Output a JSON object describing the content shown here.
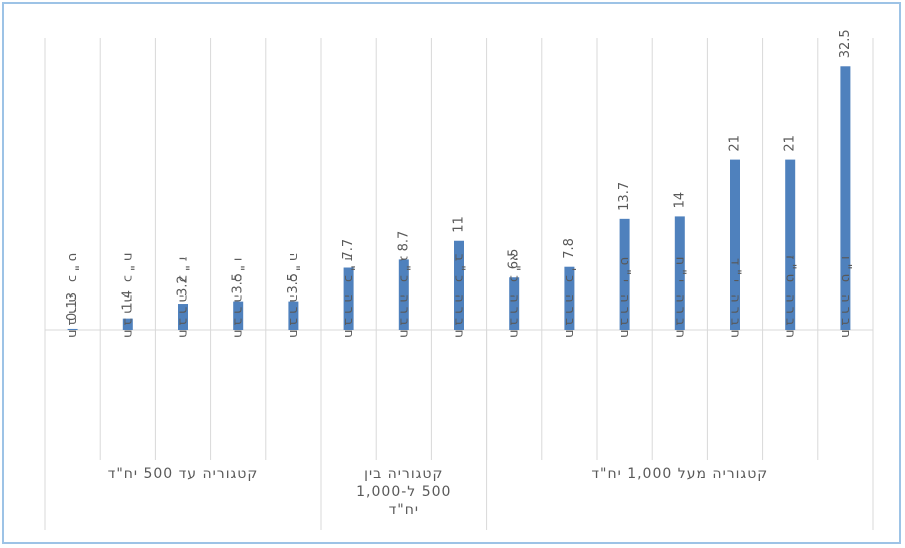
{
  "chart_data": {
    "type": "bar",
    "title": "",
    "xlabel": "",
    "ylabel": "",
    "ylim": [
      0,
      35
    ],
    "grid": "vertical",
    "color": "#4f81bd",
    "categories": [
      "חברה ט\"ו",
      "חברה ט\"ז",
      "חברה י\"ד",
      "חברה י\"ח",
      "חברה י\"ט",
      "חברה כ'",
      "חברה כ\"א",
      "חברה כ\"ב",
      "חברה כ\"ג",
      "חברה כ\"ד",
      "חברה כ\"ה",
      "חברה כ\"ו",
      "חברה כ\"ז",
      "חברה כ\"ח",
      "חברה כ\"ט"
    ],
    "values": [
      32.5,
      21,
      21,
      14,
      13.7,
      7.8,
      6.5,
      11,
      8.7,
      7.7,
      3.5,
      3.5,
      3.2,
      1.4,
      0.13
    ],
    "value_labels": [
      "32.5",
      "21",
      "21",
      "14",
      "13.7",
      "7.8",
      "6.5",
      "11",
      "8.7",
      "7.7",
      "3.5",
      "3.5",
      "3.2",
      "1.4",
      "0.13"
    ],
    "groups": [
      {
        "label_lines": [
          "קטגוריה מעל 1,000 יח\"ד"
        ],
        "count": 7
      },
      {
        "label_lines": [
          "קטגוריה בין",
          "500 ל-1,000",
          "יח\"ד"
        ],
        "count": 3
      },
      {
        "label_lines": [
          "קטגוריה עד 500 יח\"ד"
        ],
        "count": 5
      }
    ]
  }
}
